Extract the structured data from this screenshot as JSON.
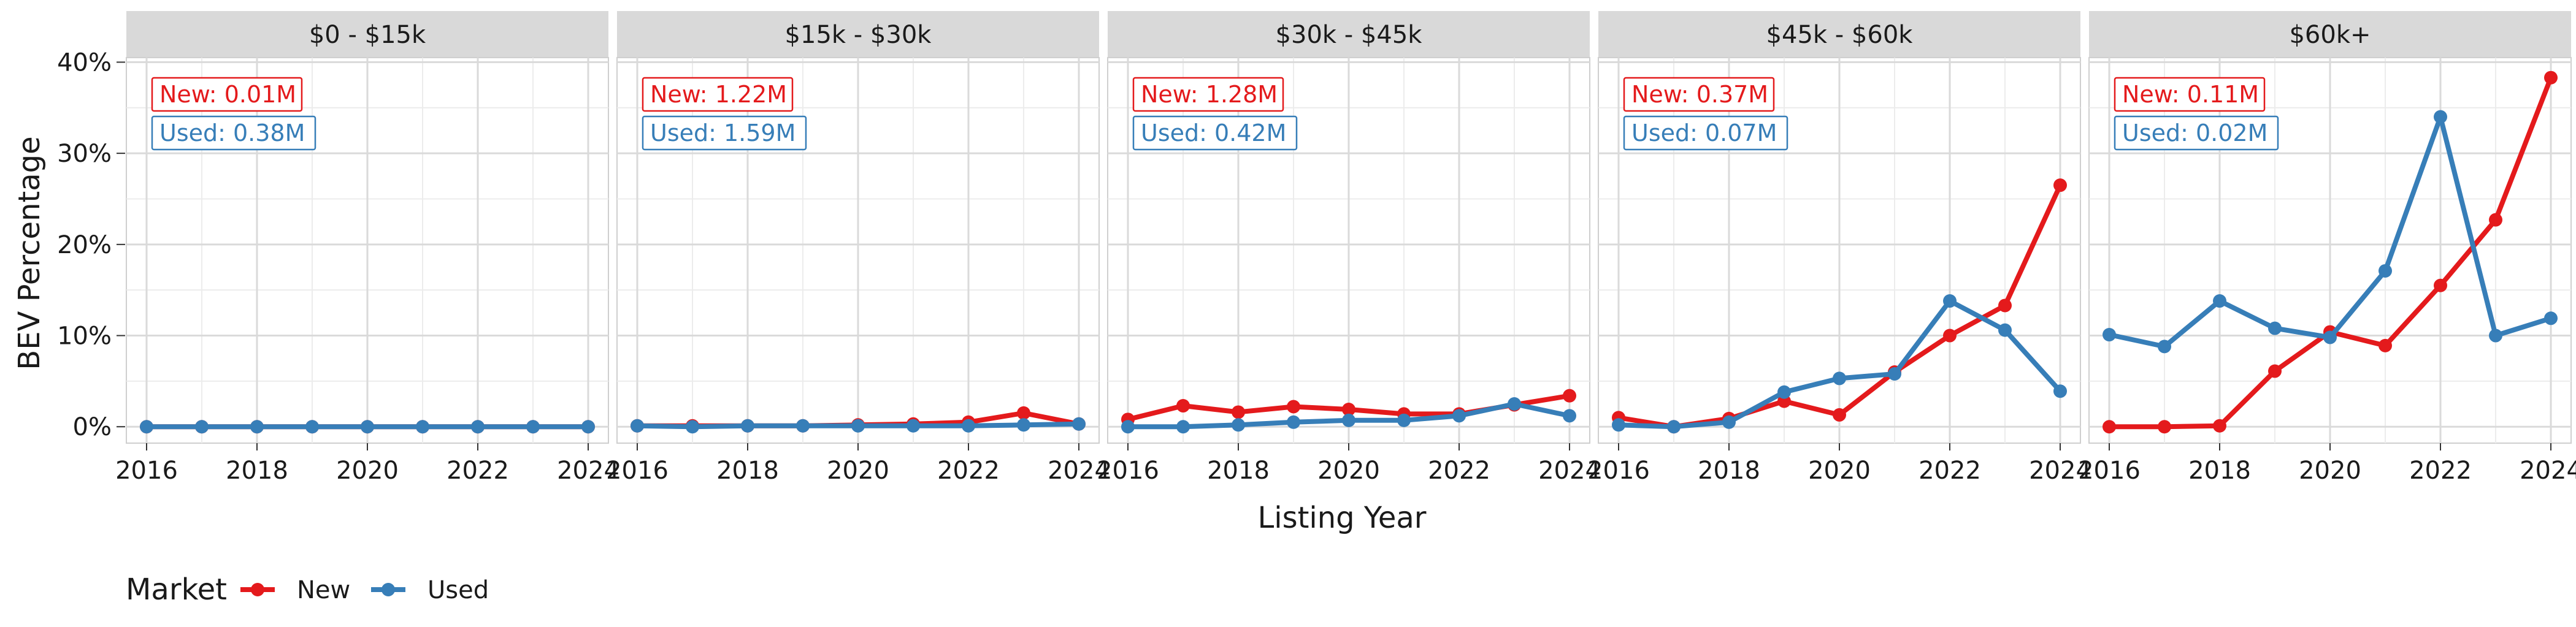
{
  "chart_data": {
    "type": "line",
    "xlabel": "Listing Year",
    "ylabel": "BEV Percentage",
    "x_ticks": [
      2016,
      2018,
      2020,
      2022,
      2024
    ],
    "y_ticks": [
      "0%",
      "10%",
      "20%",
      "30%",
      "40%"
    ],
    "y_tick_values": [
      0,
      10,
      20,
      30,
      40
    ],
    "xlim": [
      2016,
      2024
    ],
    "ylim": [
      -1.8,
      40.5
    ],
    "grid": true,
    "colors": {
      "New": "#e41a1c",
      "Used": "#377eb8"
    },
    "legend": {
      "title": "Market",
      "position": "bottom-left",
      "items": [
        "New",
        "Used"
      ]
    },
    "x": [
      2016,
      2017,
      2018,
      2019,
      2020,
      2021,
      2022,
      2023,
      2024
    ],
    "panels": [
      {
        "title": "$0 - $15k",
        "annotations": {
          "new": "New: 0.01M",
          "used": "Used: 0.38M"
        },
        "series": [
          {
            "name": "New",
            "values": [
              0,
              0,
              0,
              0,
              0,
              0,
              0,
              0,
              0
            ]
          },
          {
            "name": "Used",
            "values": [
              0,
              0,
              0,
              0,
              0,
              0,
              0,
              0,
              0
            ]
          }
        ]
      },
      {
        "title": "$15k - $30k",
        "annotations": {
          "new": "New: 1.22M",
          "used": "Used: 1.59M"
        },
        "series": [
          {
            "name": "New",
            "values": [
              0.1,
              0.1,
              0.1,
              0.1,
              0.2,
              0.3,
              0.5,
              1.5,
              0.3
            ]
          },
          {
            "name": "Used",
            "values": [
              0.1,
              0.0,
              0.1,
              0.1,
              0.1,
              0.1,
              0.1,
              0.2,
              0.3
            ]
          }
        ]
      },
      {
        "title": "$30k - $45k",
        "annotations": {
          "new": "New: 1.28M",
          "used": "Used: 0.42M"
        },
        "series": [
          {
            "name": "New",
            "values": [
              0.8,
              2.3,
              1.6,
              2.2,
              1.9,
              1.4,
              1.4,
              2.4,
              3.4
            ]
          },
          {
            "name": "Used",
            "values": [
              0.0,
              0.0,
              0.2,
              0.5,
              0.7,
              0.7,
              1.2,
              2.5,
              1.2
            ]
          }
        ]
      },
      {
        "title": "$45k - $60k",
        "annotations": {
          "new": "New: 0.37M",
          "used": "Used: 0.07M"
        },
        "series": [
          {
            "name": "New",
            "values": [
              1.0,
              0.0,
              0.9,
              2.8,
              1.3,
              6.0,
              10.0,
              13.3,
              26.5
            ]
          },
          {
            "name": "Used",
            "values": [
              0.2,
              0.0,
              0.5,
              3.8,
              5.3,
              5.8,
              13.8,
              10.6,
              3.9
            ]
          }
        ]
      },
      {
        "title": "$60k+",
        "annotations": {
          "new": "New: 0.11M",
          "used": "Used: 0.02M"
        },
        "series": [
          {
            "name": "New",
            "values": [
              0.0,
              0.0,
              0.1,
              6.1,
              10.4,
              8.9,
              15.5,
              22.7,
              38.3
            ]
          },
          {
            "name": "Used",
            "values": [
              10.1,
              8.8,
              13.8,
              10.8,
              9.8,
              17.1,
              34.0,
              10.0,
              11.9
            ]
          }
        ]
      }
    ]
  }
}
